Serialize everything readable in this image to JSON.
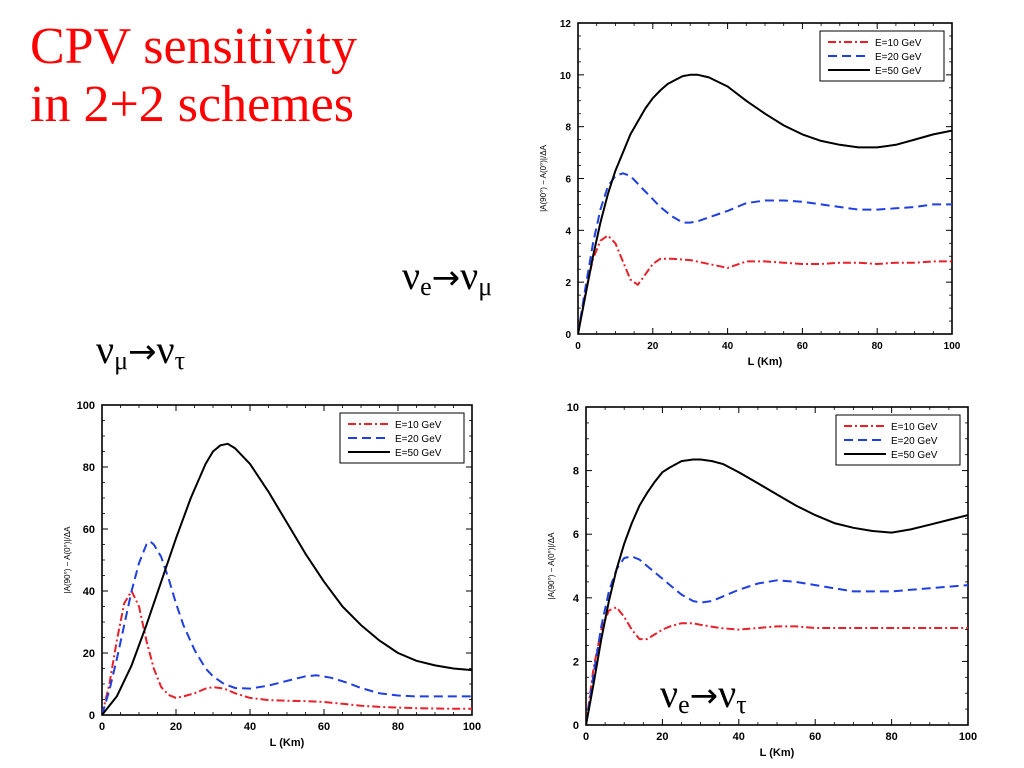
{
  "title": {
    "line1": "CPV sensitivity",
    "line2": "in 2+2 schemes"
  },
  "labels": {
    "top_right": {
      "nu": "ν",
      "from": "e",
      "arrow": "→",
      "to": "μ"
    },
    "mid_left": {
      "nu": "ν",
      "from": "μ",
      "arrow": "→",
      "to": "τ"
    },
    "bottom_right": {
      "nu": "ν",
      "from": "e",
      "arrow": "→",
      "to": "τ"
    }
  },
  "colors": {
    "title": "#ff0000",
    "e10": "#e8202a",
    "e20": "#1f3fe0",
    "e50": "#000000"
  },
  "chart_data": [
    {
      "type": "line",
      "panel": "top-right",
      "xlabel": "L (Km)",
      "ylabel": "|A(90°) − A(0°)|/ΔA",
      "xlim": [
        0,
        100
      ],
      "ylim": [
        0,
        12
      ],
      "xticks": [
        0,
        20,
        40,
        60,
        80,
        100
      ],
      "yticks": [
        0,
        2,
        4,
        6,
        8,
        10,
        12
      ],
      "legend": "top-right",
      "series": [
        {
          "name": "E=10 GeV",
          "color": "#e8202a",
          "dash": "dashdot",
          "x": [
            0,
            2,
            4,
            6,
            8,
            10,
            12,
            14,
            16,
            18,
            20,
            22,
            25,
            30,
            35,
            40,
            45,
            50,
            55,
            60,
            65,
            70,
            75,
            80,
            85,
            90,
            95,
            100
          ],
          "y": [
            0,
            1.6,
            2.9,
            3.6,
            3.8,
            3.5,
            2.8,
            2.1,
            1.9,
            2.3,
            2.7,
            2.9,
            2.9,
            2.85,
            2.7,
            2.55,
            2.8,
            2.8,
            2.75,
            2.7,
            2.7,
            2.75,
            2.75,
            2.7,
            2.75,
            2.75,
            2.8,
            2.8
          ]
        },
        {
          "name": "E=20 GeV",
          "color": "#1f3fe0",
          "dash": "dash",
          "x": [
            0,
            2,
            4,
            6,
            8,
            10,
            12,
            14,
            16,
            18,
            20,
            22,
            25,
            28,
            30,
            32,
            35,
            40,
            45,
            50,
            55,
            60,
            65,
            70,
            75,
            80,
            85,
            90,
            95,
            100
          ],
          "y": [
            0,
            1.8,
            3.5,
            4.8,
            5.7,
            6.1,
            6.2,
            6.1,
            5.8,
            5.5,
            5.2,
            4.9,
            4.55,
            4.3,
            4.3,
            4.35,
            4.5,
            4.75,
            5.05,
            5.15,
            5.15,
            5.1,
            5.0,
            4.9,
            4.8,
            4.8,
            4.85,
            4.9,
            5.0,
            5.0
          ]
        },
        {
          "name": "E=50 GeV",
          "color": "#000000",
          "dash": "solid",
          "x": [
            0,
            2,
            4,
            6,
            8,
            10,
            12,
            14,
            16,
            18,
            20,
            22,
            24,
            26,
            28,
            30,
            32,
            35,
            40,
            45,
            50,
            55,
            60,
            65,
            70,
            75,
            80,
            85,
            90,
            95,
            100
          ],
          "y": [
            0,
            1.5,
            3.0,
            4.3,
            5.4,
            6.3,
            7.0,
            7.7,
            8.2,
            8.7,
            9.1,
            9.4,
            9.65,
            9.8,
            9.95,
            10.0,
            10.0,
            9.9,
            9.55,
            9.0,
            8.5,
            8.05,
            7.7,
            7.45,
            7.3,
            7.2,
            7.2,
            7.3,
            7.5,
            7.7,
            7.85
          ]
        }
      ]
    },
    {
      "type": "line",
      "panel": "bottom-left",
      "xlabel": "L (Km)",
      "ylabel": "|A(90°) − A(0°)|/ΔA",
      "xlim": [
        0,
        100
      ],
      "ylim": [
        0,
        100
      ],
      "xticks": [
        0,
        20,
        40,
        60,
        80,
        100
      ],
      "yticks": [
        0,
        20,
        40,
        60,
        80,
        100
      ],
      "legend": "top-right",
      "series": [
        {
          "name": "E=10 GeV",
          "color": "#e8202a",
          "dash": "dashdot",
          "x": [
            0,
            2,
            4,
            6,
            8,
            10,
            12,
            14,
            16,
            18,
            20,
            22,
            25,
            28,
            30,
            33,
            36,
            40,
            45,
            50,
            55,
            60,
            65,
            70,
            75,
            80,
            85,
            90,
            95,
            100
          ],
          "y": [
            0,
            10,
            24,
            36,
            40,
            35,
            24,
            15,
            9,
            6.5,
            5.5,
            6,
            7,
            8.5,
            9,
            8.5,
            7,
            5.5,
            4.8,
            4.6,
            4.5,
            4.2,
            3.6,
            3.0,
            2.6,
            2.4,
            2.2,
            2.1,
            2.0,
            2.0
          ]
        },
        {
          "name": "E=20 GeV",
          "color": "#1f3fe0",
          "dash": "dash",
          "x": [
            0,
            2,
            4,
            6,
            8,
            10,
            12,
            13,
            14,
            16,
            18,
            20,
            22,
            25,
            28,
            30,
            33,
            36,
            40,
            45,
            50,
            55,
            58,
            62,
            66,
            70,
            75,
            80,
            85,
            90,
            95,
            100
          ],
          "y": [
            0,
            8,
            18,
            29,
            40,
            49,
            55,
            56,
            55,
            51,
            44,
            36,
            29,
            21,
            15,
            12.5,
            10,
            8.7,
            8.5,
            9.5,
            11,
            12.5,
            12.8,
            12,
            10.5,
            8.7,
            7.0,
            6.3,
            6.0,
            6.0,
            6.0,
            6.0
          ]
        },
        {
          "name": "E=50 GeV",
          "color": "#000000",
          "dash": "solid",
          "x": [
            0,
            4,
            8,
            12,
            16,
            20,
            24,
            28,
            30,
            32,
            34,
            36,
            40,
            45,
            50,
            55,
            60,
            65,
            70,
            75,
            80,
            85,
            90,
            95,
            100
          ],
          "y": [
            0,
            6,
            16,
            29,
            43,
            57,
            70,
            81,
            85,
            87,
            87.5,
            86,
            81,
            72,
            62,
            52,
            43,
            35,
            29,
            24,
            20,
            17.5,
            16,
            15,
            14.5
          ]
        }
      ]
    },
    {
      "type": "line",
      "panel": "bottom-right",
      "xlabel": "L (Km)",
      "ylabel": "|A(90°) − A(0°)|/ΔA",
      "xlim": [
        0,
        100
      ],
      "ylim": [
        0,
        10
      ],
      "xticks": [
        0,
        20,
        40,
        60,
        80,
        100
      ],
      "yticks": [
        0,
        2,
        4,
        6,
        8,
        10
      ],
      "legend": "top-right",
      "series": [
        {
          "name": "E=10 GeV",
          "color": "#e8202a",
          "dash": "dashdot",
          "x": [
            0,
            2,
            4,
            6,
            8,
            10,
            12,
            14,
            16,
            18,
            20,
            22,
            25,
            28,
            30,
            35,
            40,
            45,
            50,
            55,
            60,
            65,
            70,
            75,
            80,
            85,
            90,
            95,
            100
          ],
          "y": [
            0,
            1.8,
            3.0,
            3.6,
            3.7,
            3.4,
            3.0,
            2.7,
            2.7,
            2.85,
            3.0,
            3.1,
            3.2,
            3.2,
            3.15,
            3.05,
            3.0,
            3.05,
            3.1,
            3.1,
            3.05,
            3.05,
            3.05,
            3.05,
            3.05,
            3.05,
            3.05,
            3.05,
            3.05
          ]
        },
        {
          "name": "E=20 GeV",
          "color": "#1f3fe0",
          "dash": "dash",
          "x": [
            0,
            2,
            4,
            6,
            8,
            10,
            12,
            14,
            16,
            18,
            20,
            22,
            25,
            28,
            30,
            33,
            36,
            40,
            45,
            50,
            55,
            60,
            65,
            70,
            75,
            80,
            85,
            90,
            95,
            100
          ],
          "y": [
            0,
            1.6,
            3.1,
            4.2,
            4.9,
            5.25,
            5.3,
            5.2,
            5.0,
            4.8,
            4.6,
            4.4,
            4.1,
            3.9,
            3.85,
            3.9,
            4.05,
            4.25,
            4.45,
            4.55,
            4.5,
            4.4,
            4.3,
            4.2,
            4.2,
            4.2,
            4.25,
            4.3,
            4.35,
            4.4
          ]
        },
        {
          "name": "E=50 GeV",
          "color": "#000000",
          "dash": "solid",
          "x": [
            0,
            2,
            4,
            6,
            8,
            10,
            12,
            14,
            16,
            18,
            20,
            22,
            25,
            28,
            30,
            33,
            36,
            40,
            45,
            50,
            55,
            60,
            65,
            70,
            75,
            80,
            85,
            90,
            95,
            100
          ],
          "y": [
            0,
            1.3,
            2.7,
            3.9,
            4.9,
            5.7,
            6.35,
            6.9,
            7.3,
            7.65,
            7.95,
            8.1,
            8.3,
            8.35,
            8.35,
            8.3,
            8.2,
            7.95,
            7.6,
            7.25,
            6.9,
            6.6,
            6.35,
            6.2,
            6.1,
            6.05,
            6.15,
            6.3,
            6.45,
            6.6
          ]
        }
      ]
    }
  ]
}
